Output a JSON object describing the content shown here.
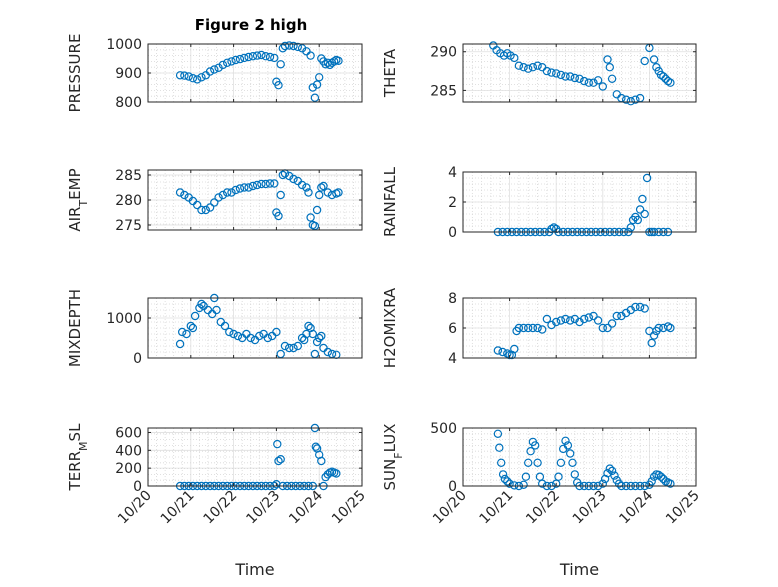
{
  "figure": {
    "title": "Figure 2 high",
    "marker_color": "#0072BD"
  },
  "chart_data": [
    {
      "id": "pressure",
      "type": "scatter",
      "title": "Figure 2 high",
      "ylabel": "PRESSURE",
      "ylabel_sub": [],
      "xlim": [
        20,
        25
      ],
      "ylim": [
        800,
        1000
      ],
      "yticks": [
        800,
        900,
        1000
      ],
      "xticks": [],
      "xlabel": "",
      "grid": true,
      "x": [
        20.75,
        20.85,
        20.95,
        21.05,
        21.15,
        21.25,
        21.35,
        21.45,
        21.55,
        21.65,
        21.75,
        21.85,
        21.95,
        22.05,
        22.15,
        22.25,
        22.35,
        22.45,
        22.55,
        22.65,
        22.75,
        22.85,
        22.95,
        23.0,
        23.05,
        23.1,
        23.15,
        23.2,
        23.3,
        23.4,
        23.5,
        23.6,
        23.7,
        23.8,
        23.85,
        23.9,
        23.95,
        24.0,
        24.05,
        24.1,
        24.15,
        24.2,
        24.25,
        24.3,
        24.35,
        24.4,
        24.45
      ],
      "y": [
        892,
        891,
        888,
        882,
        878,
        885,
        892,
        905,
        912,
        918,
        928,
        935,
        940,
        945,
        948,
        952,
        955,
        958,
        960,
        962,
        958,
        955,
        952,
        870,
        858,
        930,
        985,
        993,
        995,
        993,
        990,
        985,
        975,
        960,
        850,
        815,
        860,
        885,
        950,
        940,
        930,
        935,
        928,
        935,
        940,
        945,
        942
      ]
    },
    {
      "id": "theta",
      "type": "scatter",
      "ylabel": "THETA",
      "ylabel_sub": [],
      "xlim": [
        20,
        25
      ],
      "ylim": [
        283.5,
        291
      ],
      "yticks": [
        285,
        290
      ],
      "xticks": [],
      "xlabel": "",
      "grid": true,
      "x": [
        20.65,
        20.72,
        20.8,
        20.88,
        20.95,
        21.02,
        21.1,
        21.2,
        21.3,
        21.4,
        21.5,
        21.6,
        21.7,
        21.8,
        21.9,
        22.0,
        22.1,
        22.2,
        22.3,
        22.4,
        22.5,
        22.6,
        22.7,
        22.8,
        22.9,
        23.0,
        23.1,
        23.15,
        23.2,
        23.3,
        23.4,
        23.5,
        23.6,
        23.7,
        23.8,
        23.9,
        24.0,
        24.1,
        24.15,
        24.2,
        24.25,
        24.3,
        24.35,
        24.4,
        24.45
      ],
      "y": [
        290.8,
        290.2,
        289.8,
        289.5,
        289.8,
        289.5,
        289.2,
        288.2,
        288.0,
        287.8,
        288.0,
        288.2,
        288.0,
        287.5,
        287.3,
        287.2,
        287.0,
        286.8,
        286.8,
        286.6,
        286.5,
        286.2,
        286.0,
        286.0,
        286.3,
        285.5,
        289.0,
        288.0,
        286.5,
        284.5,
        284.0,
        283.8,
        283.6,
        283.8,
        284.0,
        288.8,
        290.5,
        289.0,
        288.0,
        287.5,
        287.0,
        286.8,
        286.5,
        286.2,
        286.0
      ]
    },
    {
      "id": "air-temp",
      "type": "scatter",
      "ylabel": "AIR",
      "ylabel_sub": [
        "T",
        "EMP"
      ],
      "xlim": [
        20,
        25
      ],
      "ylim": [
        274,
        286
      ],
      "yticks": [
        275,
        280,
        285
      ],
      "xticks": [],
      "xlabel": "",
      "grid": true,
      "x": [
        20.75,
        20.85,
        20.95,
        21.05,
        21.15,
        21.25,
        21.35,
        21.45,
        21.55,
        21.65,
        21.75,
        21.85,
        21.95,
        22.05,
        22.15,
        22.25,
        22.35,
        22.45,
        22.55,
        22.65,
        22.75,
        22.85,
        22.95,
        23.0,
        23.05,
        23.1,
        23.15,
        23.2,
        23.3,
        23.4,
        23.5,
        23.6,
        23.7,
        23.75,
        23.8,
        23.85,
        23.9,
        23.95,
        24.0,
        24.05,
        24.1,
        24.2,
        24.3,
        24.4,
        24.45
      ],
      "y": [
        281.5,
        281.0,
        280.5,
        279.8,
        279.0,
        278.0,
        278.0,
        278.5,
        279.5,
        280.5,
        281.0,
        281.5,
        281.5,
        282.0,
        282.3,
        282.5,
        282.5,
        282.8,
        283.0,
        283.2,
        283.2,
        283.3,
        283.3,
        277.5,
        276.8,
        281.0,
        285.0,
        285.3,
        284.8,
        284.2,
        283.8,
        283.0,
        282.5,
        281.5,
        276.5,
        275.0,
        274.8,
        278.0,
        281.0,
        282.5,
        282.8,
        281.5,
        281.0,
        281.3,
        281.5
      ]
    },
    {
      "id": "rainfall",
      "type": "scatter",
      "ylabel": "RAINFALL",
      "ylabel_sub": [],
      "xlim": [
        20,
        25
      ],
      "ylim": [
        0,
        4
      ],
      "yticks": [
        0,
        2,
        4
      ],
      "xticks": [],
      "xlabel": "",
      "grid": true,
      "x": [
        20.75,
        20.85,
        20.95,
        21.05,
        21.15,
        21.25,
        21.35,
        21.45,
        21.55,
        21.65,
        21.75,
        21.85,
        21.9,
        21.95,
        22.0,
        22.05,
        22.15,
        22.25,
        22.35,
        22.45,
        22.55,
        22.65,
        22.75,
        22.85,
        22.95,
        23.05,
        23.15,
        23.25,
        23.35,
        23.45,
        23.55,
        23.6,
        23.65,
        23.7,
        23.75,
        23.8,
        23.85,
        23.9,
        23.95,
        24.0,
        24.05,
        24.1,
        24.2,
        24.3,
        24.4
      ],
      "y": [
        0,
        0,
        0,
        0,
        0,
        0,
        0,
        0,
        0,
        0,
        0,
        0,
        0.2,
        0.3,
        0.2,
        0,
        0,
        0,
        0,
        0,
        0,
        0,
        0,
        0,
        0,
        0,
        0,
        0,
        0,
        0,
        0,
        0.3,
        0.8,
        1.0,
        0.8,
        1.5,
        2.2,
        1.2,
        3.6,
        0,
        0,
        0,
        0,
        0,
        0
      ]
    },
    {
      "id": "mixdepth",
      "type": "scatter",
      "ylabel": "MIXDEPTH",
      "ylabel_sub": [],
      "xlim": [
        20,
        25
      ],
      "ylim": [
        0,
        1500
      ],
      "yticks": [
        0,
        1000
      ],
      "xticks": [],
      "xlabel": "",
      "grid": true,
      "x": [
        20.75,
        20.8,
        20.9,
        21.0,
        21.05,
        21.1,
        21.2,
        21.25,
        21.3,
        21.4,
        21.5,
        21.55,
        21.6,
        21.7,
        21.8,
        21.9,
        22.0,
        22.1,
        22.2,
        22.3,
        22.4,
        22.5,
        22.6,
        22.7,
        22.8,
        22.9,
        23.0,
        23.1,
        23.2,
        23.3,
        23.4,
        23.5,
        23.6,
        23.65,
        23.7,
        23.75,
        23.8,
        23.85,
        23.9,
        23.95,
        24.0,
        24.05,
        24.1,
        24.2,
        24.3,
        24.4
      ],
      "y": [
        350,
        650,
        600,
        800,
        750,
        1050,
        1250,
        1350,
        1300,
        1200,
        1100,
        1500,
        1200,
        900,
        800,
        650,
        600,
        550,
        500,
        600,
        500,
        450,
        550,
        600,
        500,
        550,
        650,
        100,
        300,
        250,
        250,
        300,
        500,
        450,
        600,
        800,
        750,
        600,
        100,
        400,
        500,
        550,
        250,
        150,
        100,
        80
      ]
    },
    {
      "id": "h2omixra",
      "type": "scatter",
      "ylabel": "H2OMIXRA",
      "ylabel_sub": [],
      "xlim": [
        20,
        25
      ],
      "ylim": [
        4,
        8
      ],
      "yticks": [
        4,
        6,
        8
      ],
      "xticks": [],
      "xlabel": "",
      "grid": true,
      "x": [
        20.75,
        20.85,
        20.95,
        21.0,
        21.05,
        21.1,
        21.15,
        21.2,
        21.3,
        21.4,
        21.5,
        21.6,
        21.7,
        21.8,
        21.9,
        22.0,
        22.1,
        22.2,
        22.3,
        22.4,
        22.5,
        22.6,
        22.7,
        22.8,
        22.9,
        23.0,
        23.1,
        23.2,
        23.3,
        23.4,
        23.5,
        23.6,
        23.7,
        23.8,
        23.9,
        24.0,
        24.05,
        24.1,
        24.15,
        24.2,
        24.3,
        24.4,
        24.45
      ],
      "y": [
        4.5,
        4.4,
        4.3,
        4.2,
        4.2,
        4.6,
        5.8,
        6.0,
        6.0,
        6.0,
        6.0,
        6.0,
        5.9,
        6.6,
        6.2,
        6.4,
        6.5,
        6.6,
        6.5,
        6.6,
        6.4,
        6.6,
        6.7,
        6.8,
        6.5,
        6.0,
        6.0,
        6.3,
        6.8,
        6.8,
        7.0,
        7.2,
        7.4,
        7.4,
        7.3,
        5.8,
        5.0,
        5.5,
        5.8,
        6.0,
        6.0,
        6.1,
        6.0
      ]
    },
    {
      "id": "terr-msl",
      "type": "scatter",
      "ylabel": "TERR",
      "ylabel_sub": [
        "M",
        "SL"
      ],
      "xlim": [
        20,
        25
      ],
      "ylim": [
        0,
        650
      ],
      "yticks": [
        0,
        200,
        400,
        600
      ],
      "xticks": [
        "10/20",
        "10/21",
        "10/22",
        "10/23",
        "10/24",
        "10/25"
      ],
      "xlabel": "Time",
      "grid": true,
      "x": [
        20.75,
        20.85,
        20.95,
        21.05,
        21.15,
        21.25,
        21.35,
        21.45,
        21.55,
        21.65,
        21.75,
        21.85,
        21.95,
        22.05,
        22.15,
        22.25,
        22.35,
        22.45,
        22.55,
        22.65,
        22.75,
        22.85,
        22.95,
        23.0,
        23.02,
        23.05,
        23.1,
        23.15,
        23.25,
        23.35,
        23.45,
        23.55,
        23.65,
        23.75,
        23.85,
        23.9,
        23.92,
        23.95,
        24.0,
        24.05,
        24.1,
        24.15,
        24.2,
        24.25,
        24.3,
        24.35,
        24.4
      ],
      "y": [
        0,
        0,
        0,
        0,
        0,
        0,
        0,
        0,
        0,
        0,
        0,
        0,
        0,
        0,
        0,
        0,
        0,
        0,
        0,
        0,
        0,
        0,
        0,
        20,
        470,
        280,
        300,
        0,
        0,
        0,
        0,
        0,
        0,
        0,
        0,
        650,
        440,
        420,
        350,
        280,
        0,
        100,
        130,
        150,
        160,
        150,
        140
      ]
    },
    {
      "id": "sun-flux",
      "type": "scatter",
      "ylabel": "SUN",
      "ylabel_sub": [
        "F",
        "LUX"
      ],
      "xlim": [
        20,
        25
      ],
      "ylim": [
        0,
        500
      ],
      "yticks": [
        0,
        500
      ],
      "xticks": [
        "10/20",
        "10/21",
        "10/22",
        "10/23",
        "10/24",
        "10/25"
      ],
      "xlabel": "Time",
      "grid": true,
      "x": [
        20.75,
        20.78,
        20.82,
        20.86,
        20.9,
        20.95,
        21.0,
        21.1,
        21.2,
        21.3,
        21.35,
        21.4,
        21.45,
        21.5,
        21.55,
        21.6,
        21.65,
        21.7,
        21.8,
        21.9,
        22.0,
        22.05,
        22.1,
        22.15,
        22.2,
        22.25,
        22.3,
        22.35,
        22.4,
        22.45,
        22.5,
        22.6,
        22.7,
        22.8,
        22.9,
        23.0,
        23.05,
        23.1,
        23.15,
        23.2,
        23.25,
        23.3,
        23.35,
        23.4,
        23.5,
        23.6,
        23.7,
        23.8,
        23.9,
        24.0,
        24.05,
        24.1,
        24.15,
        24.2,
        24.25,
        24.3,
        24.35,
        24.4,
        24.45
      ],
      "y": [
        450,
        330,
        200,
        100,
        60,
        40,
        20,
        5,
        0,
        10,
        80,
        200,
        300,
        380,
        350,
        200,
        80,
        20,
        0,
        0,
        20,
        80,
        200,
        320,
        390,
        350,
        280,
        200,
        100,
        30,
        0,
        0,
        0,
        0,
        0,
        20,
        60,
        110,
        150,
        130,
        90,
        50,
        20,
        0,
        0,
        0,
        0,
        0,
        0,
        10,
        40,
        80,
        100,
        95,
        80,
        60,
        40,
        30,
        20
      ]
    }
  ]
}
